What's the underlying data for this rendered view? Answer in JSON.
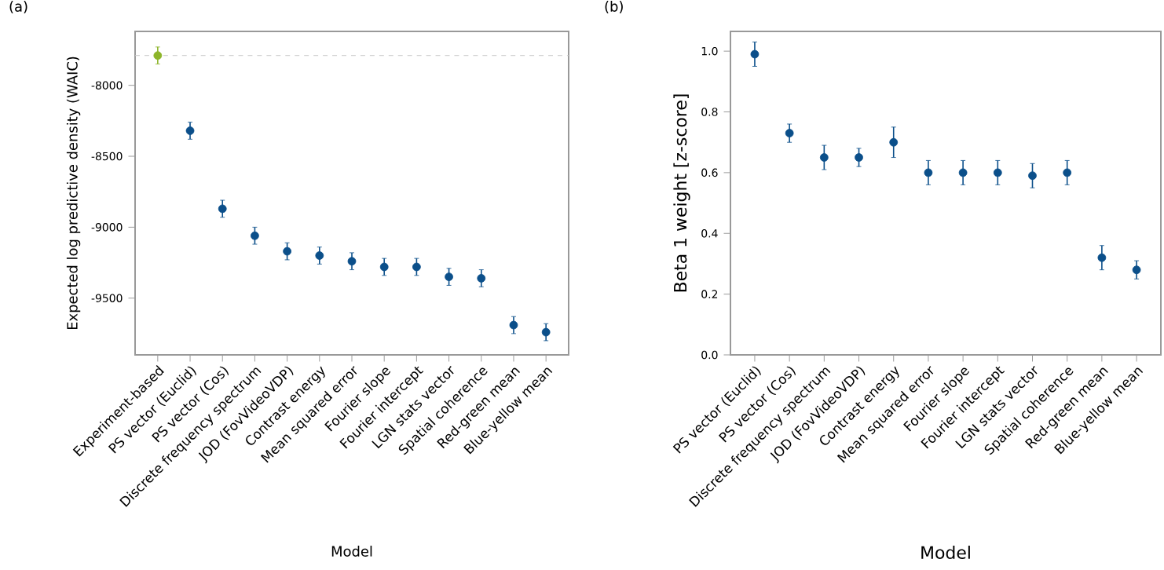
{
  "chart_data": [
    {
      "type": "scatter",
      "title": "(a)",
      "xlabel": "Model",
      "ylabel": "Expected log predictive density (WAIC)",
      "categories": [
        "Experiment-based",
        "PS vector (Euclid)",
        "PS vector (Cos)",
        "Discrete frequency spectrum",
        "JOD (FovVideoVDP)",
        "Contrast energy",
        "Mean squared error",
        "Fourier slope",
        "Fourier intercept",
        "LGN stats vector",
        "Spatial coherence",
        "Red-green mean",
        "Blue-yellow mean"
      ],
      "values": [
        -7790,
        -8320,
        -8870,
        -9060,
        -9170,
        -9200,
        -9240,
        -9280,
        -9280,
        -9350,
        -9360,
        -9690,
        -9740
      ],
      "errors": [
        60,
        60,
        60,
        60,
        60,
        60,
        60,
        60,
        60,
        60,
        60,
        60,
        60
      ],
      "colors": [
        "#8db52a",
        "#0b4f8a",
        "#0b4f8a",
        "#0b4f8a",
        "#0b4f8a",
        "#0b4f8a",
        "#0b4f8a",
        "#0b4f8a",
        "#0b4f8a",
        "#0b4f8a",
        "#0b4f8a",
        "#0b4f8a",
        "#0b4f8a"
      ],
      "ylim": [
        -9900,
        -7620
      ],
      "yticks": [
        -8000,
        -8500,
        -9000,
        -9500
      ],
      "ref_lines": [
        {
          "axis": "y",
          "value": -7790,
          "color": "#c8c8c8",
          "line_style": "dashed"
        }
      ],
      "marker": "circle",
      "grid": false
    },
    {
      "type": "scatter",
      "title": "(b)",
      "xlabel": "Model",
      "ylabel": "Beta 1 weight [z-score]",
      "categories": [
        "PS vector (Euclid)",
        "PS vector (Cos)",
        "Discrete frequency spectrum",
        "JOD (FovVideoVDP)",
        "Contrast energy",
        "Mean squared error",
        "Fourier slope",
        "Fourier intercept",
        "LGN stats vector",
        "Spatial coherence",
        "Red-green mean",
        "Blue-yellow mean"
      ],
      "values": [
        0.99,
        0.73,
        0.65,
        0.65,
        0.7,
        0.6,
        0.6,
        0.6,
        0.59,
        0.6,
        0.32,
        0.28
      ],
      "errors": [
        0.04,
        0.03,
        0.04,
        0.03,
        0.05,
        0.04,
        0.04,
        0.04,
        0.04,
        0.04,
        0.04,
        0.03
      ],
      "colors": [
        "#0b4f8a",
        "#0b4f8a",
        "#0b4f8a",
        "#0b4f8a",
        "#0b4f8a",
        "#0b4f8a",
        "#0b4f8a",
        "#0b4f8a",
        "#0b4f8a",
        "#0b4f8a",
        "#0b4f8a",
        "#0b4f8a"
      ],
      "ylim": [
        0,
        1.065
      ],
      "yticks": [
        {
          "value": 0,
          "label": "0.0"
        },
        0.2,
        0.4,
        0.6,
        0.8,
        {
          "value": 1,
          "label": "1.0"
        }
      ],
      "marker": "circle",
      "grid": false
    }
  ]
}
